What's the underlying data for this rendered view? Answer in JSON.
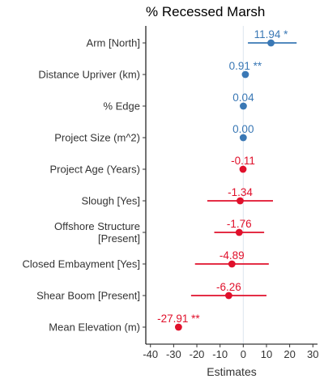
{
  "chart_data": {
    "type": "forest",
    "title": "% Recessed Marsh",
    "xlabel": "Estimates",
    "xlim": [
      -42,
      32
    ],
    "xticks": [
      -40,
      -30,
      -20,
      -10,
      0,
      10,
      20,
      30
    ],
    "xtick_labels": [
      "-40",
      "-30",
      "-20",
      "-10",
      "0",
      "10",
      "20",
      "30"
    ],
    "reference_line": 0,
    "colors": {
      "positive": "#3a78b5",
      "negative": "#e0102b",
      "reference": "#dde6ee"
    },
    "terms": [
      {
        "label": "Arm [North]",
        "estimate": 11.94,
        "ci": [
          2.0,
          23.0
        ],
        "display": "11.94 *"
      },
      {
        "label": "Distance Upriver (km)",
        "estimate": 0.91,
        "ci": [
          0.6,
          1.2
        ],
        "display": "0.91 **"
      },
      {
        "label": "% Edge",
        "estimate": 0.04,
        "ci": [
          0.0,
          0.08
        ],
        "display": "0.04"
      },
      {
        "label": "Project Size (m^2)",
        "estimate": 0.0,
        "ci": [
          0.0,
          0.0
        ],
        "display": "0.00"
      },
      {
        "label": "Project Age (Years)",
        "estimate": -0.11,
        "ci": [
          -0.9,
          0.7
        ],
        "display": "-0.11"
      },
      {
        "label": "Slough [Yes]",
        "estimate": -1.34,
        "ci": [
          -15.5,
          12.8
        ],
        "display": "-1.34"
      },
      {
        "label": [
          "Offshore Structure",
          "[Present]"
        ],
        "estimate": -1.76,
        "ci": [
          -12.5,
          9.0
        ],
        "display": "-1.76"
      },
      {
        "label": "Closed Embayment [Yes]",
        "estimate": -4.89,
        "ci": [
          -20.8,
          11.0
        ],
        "display": "-4.89"
      },
      {
        "label": "Shear Boom [Present]",
        "estimate": -6.26,
        "ci": [
          -22.5,
          10.0
        ],
        "display": "-6.26"
      },
      {
        "label": "Mean Elevation (m)",
        "estimate": -27.91,
        "ci": [
          -27.91,
          -27.91
        ],
        "display": "-27.91 **"
      }
    ]
  }
}
